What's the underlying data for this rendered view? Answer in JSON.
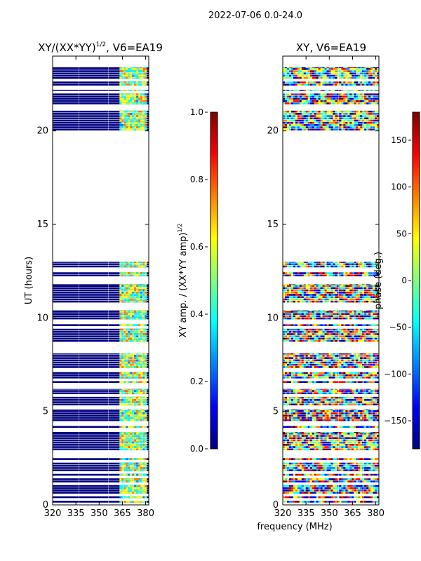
{
  "suptitle": "2022-07-06 0.0-24.0",
  "shared": {
    "ylabel": "UT (hours)",
    "xlabel": "frequency (MHz)",
    "y_ticks": [
      0,
      5,
      10,
      15,
      20
    ],
    "ylim": [
      0,
      24
    ],
    "x_ticks": [
      320,
      335,
      350,
      365,
      380
    ],
    "xlim": [
      320,
      382
    ]
  },
  "chart_data": [
    {
      "type": "heatmap",
      "title": "XY/(XX*YY)",
      "title_sup": "1/2",
      "title_suffix": ", V6=EA19",
      "xlabel": "",
      "ylabel": "UT (hours)",
      "xlim": [
        320,
        382
      ],
      "ylim": [
        0,
        24
      ],
      "colormap": "jet",
      "observed_time_blocks_hours": [
        [
          0.1,
          2.5
        ],
        [
          2.9,
          3.9
        ],
        [
          4.1,
          5.1
        ],
        [
          5.3,
          6.2
        ],
        [
          6.5,
          7.1
        ],
        [
          7.3,
          8.1
        ],
        [
          8.7,
          10.4
        ],
        [
          10.8,
          11.8
        ],
        [
          12.2,
          13.0
        ],
        [
          20.0,
          21.1
        ],
        [
          21.4,
          22.2
        ],
        [
          22.4,
          23.4
        ],
        [
          23.6,
          23.7
        ]
      ],
      "colorbar": {
        "label": "XY amp. / (XX*YY amp)",
        "label_sup": "1/2",
        "range": [
          0.0,
          1.0
        ],
        "ticks": [
          "0.0",
          "0.2",
          "0.4",
          "0.6",
          "0.8",
          "1.0"
        ]
      }
    },
    {
      "type": "heatmap",
      "title": "XY, V6=EA19",
      "xlabel": "frequency (MHz)",
      "ylabel": "",
      "xlim": [
        320,
        382
      ],
      "ylim": [
        0,
        24
      ],
      "colormap": "jet",
      "colorbar": {
        "label": "phase (deg.)",
        "range": [
          -180,
          180
        ],
        "ticks": [
          "−150",
          "−100",
          "−50",
          "0",
          "50",
          "100",
          "150"
        ]
      }
    }
  ],
  "colors": {
    "jet": [
      "#00007f",
      "#0000ff",
      "#007fff",
      "#00ffff",
      "#7fff7f",
      "#ffff00",
      "#ff7f00",
      "#ff0000",
      "#7f0000"
    ],
    "blank": "#ffffff",
    "axis": "#000000"
  }
}
